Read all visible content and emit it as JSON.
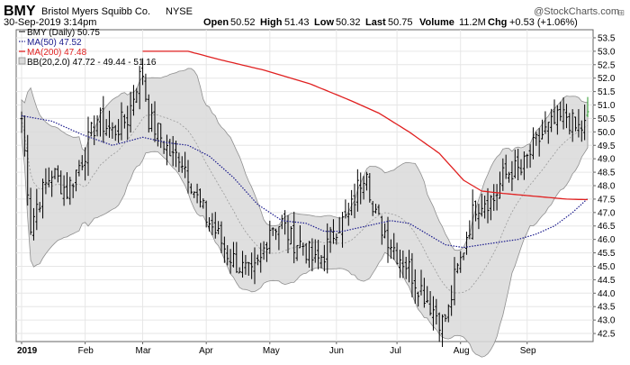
{
  "header": {
    "symbol": "BMY",
    "company": "Bristol Myers Squibb Co.",
    "exchange": "NYSE",
    "datetime": "30-Sep-2019 3:14pm",
    "open_label": "Open",
    "open": "50.52",
    "high_label": "High",
    "high": "51.43",
    "low_label": "Low",
    "low": "50.32",
    "last_label": "Last",
    "last": "50.75",
    "volume_label": "Volume",
    "volume": "11.2M",
    "chg_label": "Chg",
    "chg": "+0.53 (+1.06%)",
    "watermark": "@StockCharts.com"
  },
  "legend": [
    {
      "key": "BMY (Daily) 50.75",
      "color": "#000000",
      "style": "price"
    },
    {
      "key": "MA(50) 47.52",
      "color": "#1a1a8c",
      "style": "dotted"
    },
    {
      "key": "MA(200) 47.48",
      "color": "#e02020",
      "style": "solid"
    },
    {
      "key": "BB(20,2.0) 47.72 - 49.44 - 51.16",
      "color": "#9a9a9a",
      "style": "band"
    }
  ],
  "colors": {
    "price_up": "#000000",
    "price_down": "#000000",
    "last_bar": "#2a9a2a",
    "ma50": "#1a1a8c",
    "ma200": "#e02020",
    "band_fill": "#d9d9d9",
    "band_edge": "#8f8f8f",
    "bb_mid": "#9a9a9a"
  },
  "chart_data": {
    "type": "line",
    "title": "BMY (Daily)",
    "ylim": [
      42.2,
      53.8
    ],
    "y_ticks": [
      42.5,
      43.0,
      43.5,
      44.0,
      44.5,
      45.0,
      45.5,
      46.0,
      46.5,
      47.0,
      47.5,
      48.0,
      48.5,
      49.0,
      49.5,
      50.0,
      50.5,
      51.0,
      51.5,
      52.0,
      52.5,
      53.0,
      53.5
    ],
    "x_ticks": [
      {
        "label": "2019",
        "i": 0,
        "bold": true
      },
      {
        "label": "Feb",
        "i": 21
      },
      {
        "label": "Mar",
        "i": 40
      },
      {
        "label": "Apr",
        "i": 61
      },
      {
        "label": "May",
        "i": 82
      },
      {
        "label": "Jun",
        "i": 104
      },
      {
        "label": "Jul",
        "i": 124
      },
      {
        "label": "Aug",
        "i": 145
      },
      {
        "label": "Sep",
        "i": 167
      }
    ],
    "n_bars": 188,
    "close_anchors": [
      [
        0,
        50.5
      ],
      [
        2,
        48
      ],
      [
        3,
        46.5
      ],
      [
        5,
        47.3
      ],
      [
        10,
        48.5
      ],
      [
        15,
        47.8
      ],
      [
        20,
        49
      ],
      [
        25,
        50.5
      ],
      [
        30,
        50
      ],
      [
        35,
        50.5
      ],
      [
        38,
        51.8
      ],
      [
        40,
        52.2
      ],
      [
        42,
        50.5
      ],
      [
        46,
        49.8
      ],
      [
        50,
        49
      ],
      [
        52,
        49.2
      ],
      [
        55,
        48.5
      ],
      [
        58,
        47.5
      ],
      [
        61,
        46.8
      ],
      [
        64,
        46.3
      ],
      [
        68,
        45.5
      ],
      [
        72,
        45
      ],
      [
        76,
        44.6
      ],
      [
        79,
        45.2
      ],
      [
        82,
        46.5
      ],
      [
        86,
        46.6
      ],
      [
        89,
        46
      ],
      [
        93,
        45.8
      ],
      [
        97,
        45.1
      ],
      [
        100,
        45.5
      ],
      [
        104,
        46.5
      ],
      [
        108,
        46.8
      ],
      [
        111,
        47.9
      ],
      [
        114,
        48.8
      ],
      [
        116,
        47
      ],
      [
        120,
        46.3
      ],
      [
        124,
        45.5
      ],
      [
        127,
        45.1
      ],
      [
        130,
        44.5
      ],
      [
        133,
        44
      ],
      [
        136,
        43.4
      ],
      [
        139,
        42.9
      ],
      [
        141,
        43.3
      ],
      [
        143,
        44.5
      ],
      [
        145,
        45.2
      ],
      [
        147,
        46.2
      ],
      [
        150,
        47.3
      ],
      [
        153,
        47.5
      ],
      [
        156,
        47.5
      ],
      [
        159,
        48.3
      ],
      [
        162,
        48.6
      ],
      [
        165,
        48.5
      ],
      [
        168,
        49.2
      ],
      [
        172,
        49.9
      ],
      [
        176,
        50.3
      ],
      [
        180,
        50.6
      ],
      [
        183,
        50.1
      ],
      [
        186,
        50.2
      ],
      [
        187,
        50.75
      ]
    ],
    "ma50_anchors": [
      [
        0,
        50.6
      ],
      [
        10,
        50.4
      ],
      [
        20,
        49.9
      ],
      [
        30,
        49.5
      ],
      [
        40,
        49.8
      ],
      [
        48,
        49.6
      ],
      [
        55,
        49.5
      ],
      [
        62,
        49.1
      ],
      [
        70,
        48.3
      ],
      [
        78,
        47.3
      ],
      [
        86,
        46.7
      ],
      [
        94,
        46.6
      ],
      [
        100,
        46.3
      ],
      [
        106,
        46.3
      ],
      [
        114,
        46.5
      ],
      [
        122,
        46.7
      ],
      [
        128,
        46.6
      ],
      [
        134,
        46.2
      ],
      [
        140,
        45.8
      ],
      [
        146,
        45.7
      ],
      [
        152,
        45.8
      ],
      [
        158,
        45.9
      ],
      [
        164,
        46.0
      ],
      [
        170,
        46.2
      ],
      [
        176,
        46.5
      ],
      [
        182,
        47.0
      ],
      [
        187,
        47.52
      ]
    ],
    "ma200_anchors": [
      [
        40,
        53.0
      ],
      [
        55,
        53.0
      ],
      [
        65,
        52.7
      ],
      [
        80,
        52.3
      ],
      [
        95,
        51.8
      ],
      [
        108,
        51.2
      ],
      [
        118,
        50.7
      ],
      [
        128,
        50.0
      ],
      [
        138,
        49.2
      ],
      [
        146,
        48.2
      ],
      [
        152,
        47.8
      ],
      [
        160,
        47.7
      ],
      [
        170,
        47.6
      ],
      [
        180,
        47.5
      ],
      [
        187,
        47.48
      ]
    ]
  }
}
